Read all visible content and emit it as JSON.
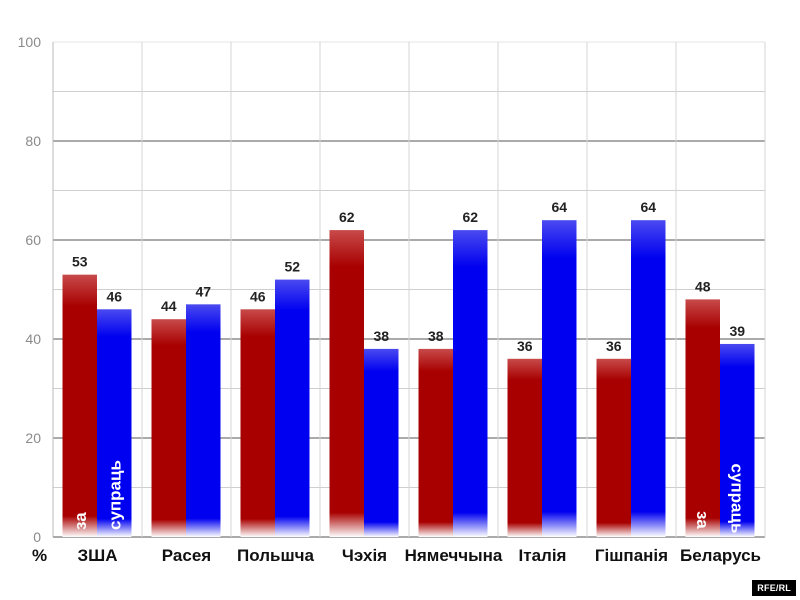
{
  "chart_data": {
    "type": "bar",
    "categories": [
      "ЗША",
      "Расея",
      "Польшча",
      "Чэхія",
      "Нямеччына",
      "Італія",
      "Гішпанія",
      "Беларусь"
    ],
    "series": [
      {
        "name": "за",
        "color": "#a80000",
        "values": [
          53,
          44,
          46,
          62,
          38,
          36,
          36,
          48
        ]
      },
      {
        "name": "супраць",
        "color": "#0000f0",
        "values": [
          46,
          47,
          52,
          38,
          62,
          64,
          64,
          39
        ]
      }
    ],
    "y_ticks": [
      0,
      20,
      40,
      60,
      80,
      100
    ],
    "ylim": [
      0,
      100
    ],
    "grid": true,
    "y_unit": "%",
    "in_bar_labels": [
      {
        "series": 0,
        "category": 0,
        "text": "за"
      },
      {
        "series": 1,
        "category": 0,
        "text": "супраць"
      },
      {
        "series": 0,
        "category": 7,
        "text": "за"
      },
      {
        "series": 1,
        "category": 7,
        "text": "супраць"
      }
    ]
  },
  "source": "RFE/RL"
}
